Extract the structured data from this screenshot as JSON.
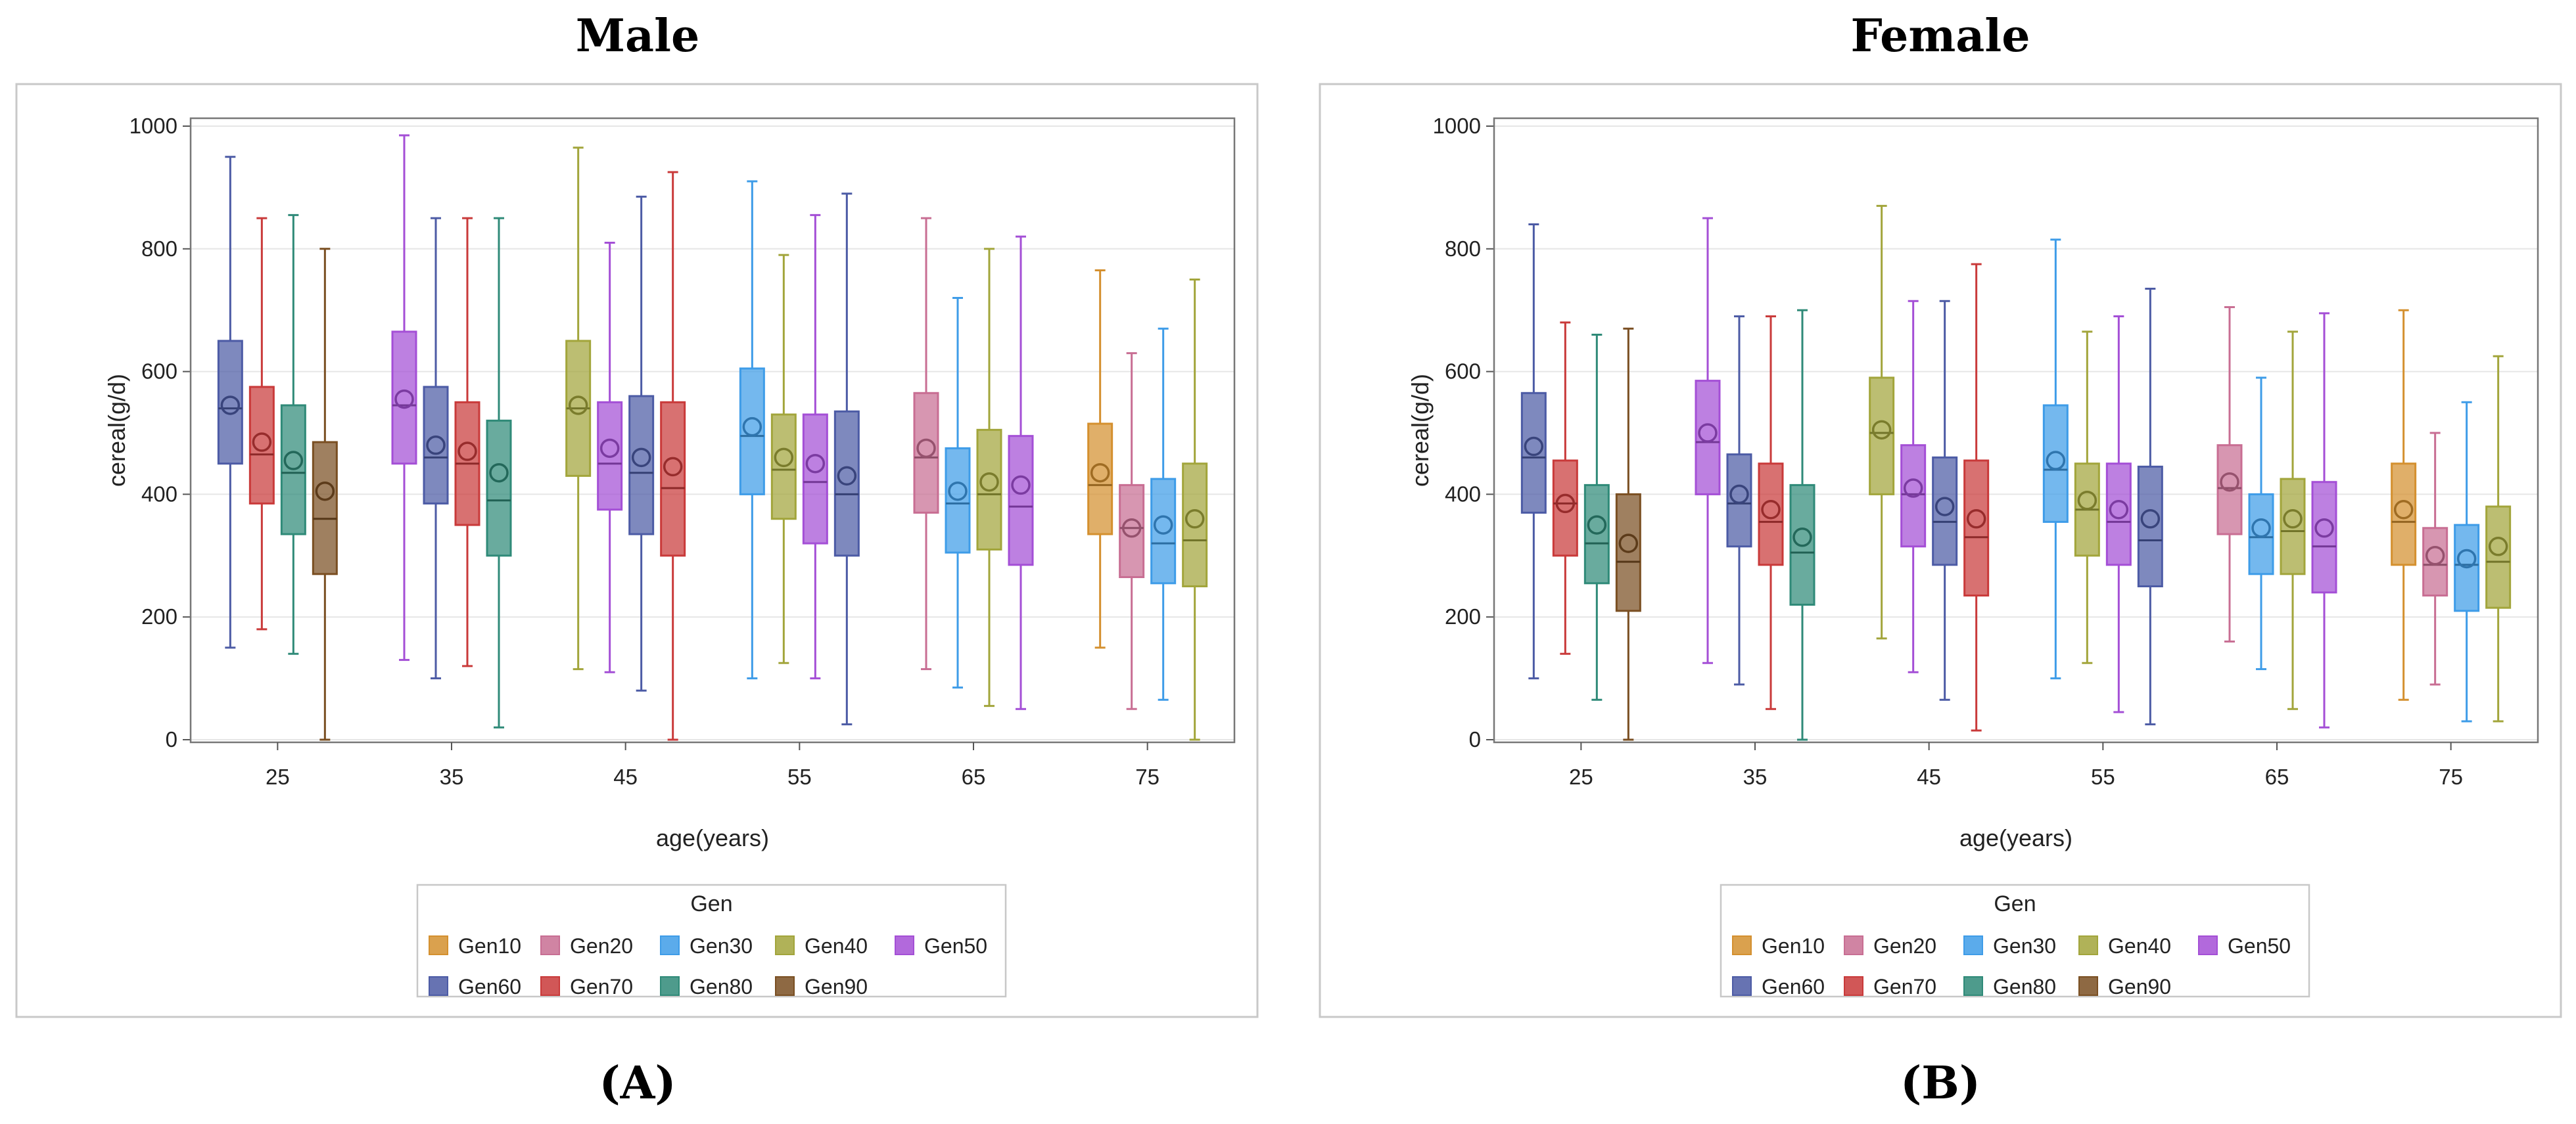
{
  "colors": {
    "Gen10": "#D4902F",
    "Gen20": "#C86E93",
    "Gen30": "#3E9CE8",
    "Gen40": "#A2A53B",
    "Gen50": "#A44FD6",
    "Gen60": "#4C5BA5",
    "Gen70": "#C93A3A",
    "Gen80": "#2F8A78",
    "Gen90": "#7A4F22"
  },
  "chart_data": [
    {
      "type": "box",
      "title": "Male",
      "panel_label": "(A)",
      "xlabel": "age(years)",
      "ylabel": "cereal(g/d)",
      "ylim": [
        0,
        1000
      ],
      "yticks": [
        0,
        200,
        400,
        600,
        800,
        1000
      ],
      "categories": [
        "25",
        "35",
        "45",
        "55",
        "65",
        "75"
      ],
      "legend": {
        "title": "Gen",
        "position": "bottom-center",
        "entries": [
          "Gen10",
          "Gen20",
          "Gen30",
          "Gen40",
          "Gen50",
          "Gen60",
          "Gen70",
          "Gen80",
          "Gen90"
        ]
      },
      "grid": true,
      "groups": [
        {
          "category": "25",
          "boxes": [
            {
              "series": "Gen60",
              "min": 150,
              "q1": 450,
              "median": 540,
              "q3": 650,
              "max": 950,
              "mean": 545
            },
            {
              "series": "Gen70",
              "min": 180,
              "q1": 385,
              "median": 465,
              "q3": 575,
              "max": 850,
              "mean": 485
            },
            {
              "series": "Gen80",
              "min": 140,
              "q1": 335,
              "median": 435,
              "q3": 545,
              "max": 855,
              "mean": 455
            },
            {
              "series": "Gen90",
              "min": 0,
              "q1": 270,
              "median": 360,
              "q3": 485,
              "max": 800,
              "mean": 405
            }
          ]
        },
        {
          "category": "35",
          "boxes": [
            {
              "series": "Gen50",
              "min": 130,
              "q1": 450,
              "median": 545,
              "q3": 665,
              "max": 985,
              "mean": 555
            },
            {
              "series": "Gen60",
              "min": 100,
              "q1": 385,
              "median": 460,
              "q3": 575,
              "max": 850,
              "mean": 480
            },
            {
              "series": "Gen70",
              "min": 120,
              "q1": 350,
              "median": 450,
              "q3": 550,
              "max": 850,
              "mean": 470
            },
            {
              "series": "Gen80",
              "min": 20,
              "q1": 300,
              "median": 390,
              "q3": 520,
              "max": 850,
              "mean": 435
            }
          ]
        },
        {
          "category": "45",
          "boxes": [
            {
              "series": "Gen40",
              "min": 115,
              "q1": 430,
              "median": 540,
              "q3": 650,
              "max": 965,
              "mean": 545
            },
            {
              "series": "Gen50",
              "min": 110,
              "q1": 375,
              "median": 450,
              "q3": 550,
              "max": 810,
              "mean": 475
            },
            {
              "series": "Gen60",
              "min": 80,
              "q1": 335,
              "median": 435,
              "q3": 560,
              "max": 885,
              "mean": 460
            },
            {
              "series": "Gen70",
              "min": 0,
              "q1": 300,
              "median": 410,
              "q3": 550,
              "max": 925,
              "mean": 445
            }
          ]
        },
        {
          "category": "55",
          "boxes": [
            {
              "series": "Gen30",
              "min": 100,
              "q1": 400,
              "median": 495,
              "q3": 605,
              "max": 910,
              "mean": 510
            },
            {
              "series": "Gen40",
              "min": 125,
              "q1": 360,
              "median": 440,
              "q3": 530,
              "max": 790,
              "mean": 460
            },
            {
              "series": "Gen50",
              "min": 100,
              "q1": 320,
              "median": 420,
              "q3": 530,
              "max": 855,
              "mean": 450
            },
            {
              "series": "Gen60",
              "min": 25,
              "q1": 300,
              "median": 400,
              "q3": 535,
              "max": 890,
              "mean": 430
            }
          ]
        },
        {
          "category": "65",
          "boxes": [
            {
              "series": "Gen20",
              "min": 115,
              "q1": 370,
              "median": 460,
              "q3": 565,
              "max": 850,
              "mean": 475
            },
            {
              "series": "Gen30",
              "min": 85,
              "q1": 305,
              "median": 385,
              "q3": 475,
              "max": 720,
              "mean": 405
            },
            {
              "series": "Gen40",
              "min": 55,
              "q1": 310,
              "median": 400,
              "q3": 505,
              "max": 800,
              "mean": 420
            },
            {
              "series": "Gen50",
              "min": 50,
              "q1": 285,
              "median": 380,
              "q3": 495,
              "max": 820,
              "mean": 415
            }
          ]
        },
        {
          "category": "75",
          "boxes": [
            {
              "series": "Gen10",
              "min": 150,
              "q1": 335,
              "median": 415,
              "q3": 515,
              "max": 765,
              "mean": 435
            },
            {
              "series": "Gen20",
              "min": 50,
              "q1": 265,
              "median": 345,
              "q3": 415,
              "max": 630,
              "mean": 345
            },
            {
              "series": "Gen30",
              "min": 65,
              "q1": 255,
              "median": 320,
              "q3": 425,
              "max": 670,
              "mean": 350
            },
            {
              "series": "Gen40",
              "min": 0,
              "q1": 250,
              "median": 325,
              "q3": 450,
              "max": 750,
              "mean": 360
            }
          ]
        }
      ]
    },
    {
      "type": "box",
      "title": "Female",
      "panel_label": "(B)",
      "xlabel": "age(years)",
      "ylabel": "cereal(g/d)",
      "ylim": [
        0,
        1000
      ],
      "yticks": [
        0,
        200,
        400,
        600,
        800,
        1000
      ],
      "categories": [
        "25",
        "35",
        "45",
        "55",
        "65",
        "75"
      ],
      "legend": {
        "title": "Gen",
        "position": "bottom-center",
        "entries": [
          "Gen10",
          "Gen20",
          "Gen30",
          "Gen40",
          "Gen50",
          "Gen60",
          "Gen70",
          "Gen80",
          "Gen90"
        ]
      },
      "grid": true,
      "groups": [
        {
          "category": "25",
          "boxes": [
            {
              "series": "Gen60",
              "min": 100,
              "q1": 370,
              "median": 460,
              "q3": 565,
              "max": 840,
              "mean": 478
            },
            {
              "series": "Gen70",
              "min": 140,
              "q1": 300,
              "median": 385,
              "q3": 455,
              "max": 680,
              "mean": 385
            },
            {
              "series": "Gen80",
              "min": 65,
              "q1": 255,
              "median": 320,
              "q3": 415,
              "max": 660,
              "mean": 350
            },
            {
              "series": "Gen90",
              "min": 0,
              "q1": 210,
              "median": 290,
              "q3": 400,
              "max": 670,
              "mean": 320
            }
          ]
        },
        {
          "category": "35",
          "boxes": [
            {
              "series": "Gen50",
              "min": 125,
              "q1": 400,
              "median": 485,
              "q3": 585,
              "max": 850,
              "mean": 500
            },
            {
              "series": "Gen60",
              "min": 90,
              "q1": 315,
              "median": 385,
              "q3": 465,
              "max": 690,
              "mean": 400
            },
            {
              "series": "Gen70",
              "min": 50,
              "q1": 285,
              "median": 355,
              "q3": 450,
              "max": 690,
              "mean": 375
            },
            {
              "series": "Gen80",
              "min": 0,
              "q1": 220,
              "median": 305,
              "q3": 415,
              "max": 700,
              "mean": 330
            }
          ]
        },
        {
          "category": "45",
          "boxes": [
            {
              "series": "Gen40",
              "min": 165,
              "q1": 400,
              "median": 500,
              "q3": 590,
              "max": 870,
              "mean": 505
            },
            {
              "series": "Gen50",
              "min": 110,
              "q1": 315,
              "median": 400,
              "q3": 480,
              "max": 715,
              "mean": 410
            },
            {
              "series": "Gen60",
              "min": 65,
              "q1": 285,
              "median": 355,
              "q3": 460,
              "max": 715,
              "mean": 380
            },
            {
              "series": "Gen70",
              "min": 15,
              "q1": 235,
              "median": 330,
              "q3": 455,
              "max": 775,
              "mean": 360
            }
          ]
        },
        {
          "category": "55",
          "boxes": [
            {
              "series": "Gen30",
              "min": 100,
              "q1": 355,
              "median": 440,
              "q3": 545,
              "max": 815,
              "mean": 455
            },
            {
              "series": "Gen40",
              "min": 125,
              "q1": 300,
              "median": 375,
              "q3": 450,
              "max": 665,
              "mean": 390
            },
            {
              "series": "Gen50",
              "min": 45,
              "q1": 285,
              "median": 355,
              "q3": 450,
              "max": 690,
              "mean": 375
            },
            {
              "series": "Gen60",
              "min": 25,
              "q1": 250,
              "median": 325,
              "q3": 445,
              "max": 735,
              "mean": 360
            }
          ]
        },
        {
          "category": "65",
          "boxes": [
            {
              "series": "Gen20",
              "min": 160,
              "q1": 335,
              "median": 410,
              "q3": 480,
              "max": 705,
              "mean": 420
            },
            {
              "series": "Gen30",
              "min": 115,
              "q1": 270,
              "median": 330,
              "q3": 400,
              "max": 590,
              "mean": 345
            },
            {
              "series": "Gen40",
              "min": 50,
              "q1": 270,
              "median": 340,
              "q3": 425,
              "max": 665,
              "mean": 360
            },
            {
              "series": "Gen50",
              "min": 20,
              "q1": 240,
              "median": 315,
              "q3": 420,
              "max": 695,
              "mean": 345
            }
          ]
        },
        {
          "category": "75",
          "boxes": [
            {
              "series": "Gen10",
              "min": 65,
              "q1": 285,
              "median": 355,
              "q3": 450,
              "max": 700,
              "mean": 375
            },
            {
              "series": "Gen20",
              "min": 90,
              "q1": 235,
              "median": 285,
              "q3": 345,
              "max": 500,
              "mean": 300
            },
            {
              "series": "Gen30",
              "min": 30,
              "q1": 210,
              "median": 285,
              "q3": 350,
              "max": 550,
              "mean": 295
            },
            {
              "series": "Gen40",
              "min": 30,
              "q1": 215,
              "median": 290,
              "q3": 380,
              "max": 625,
              "mean": 315
            }
          ]
        }
      ]
    }
  ]
}
